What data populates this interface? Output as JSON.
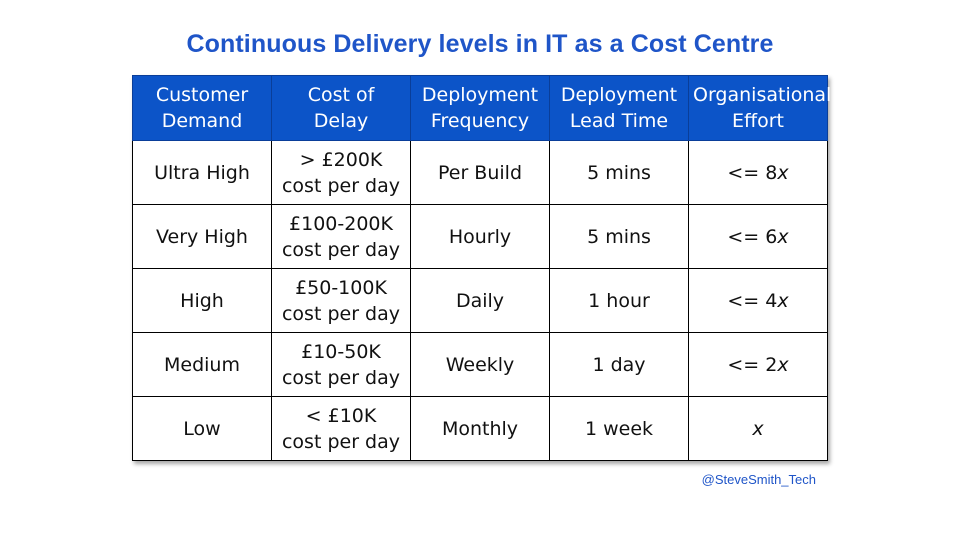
{
  "title": "Continuous Delivery levels in IT as a Cost Centre",
  "handle": "@SteveSmith_Tech",
  "colors": {
    "title": "#1f55c8",
    "header_bg": "#0c54c8",
    "header_text": "#ffffff"
  },
  "table": {
    "headers": [
      [
        "Customer",
        "Demand"
      ],
      [
        "Cost of",
        "Delay"
      ],
      [
        "Deployment",
        "Frequency"
      ],
      [
        "Deployment",
        "Lead Time"
      ],
      [
        "Organisational",
        "Effort"
      ]
    ],
    "rows": [
      {
        "demand": "Ultra High",
        "cost1": "> £200K",
        "cost2": "cost per day",
        "frequency": "Per Build",
        "lead_time": "5 mins",
        "effort_prefix": "<= 8",
        "effort_var": "x"
      },
      {
        "demand": "Very High",
        "cost1": "£100-200K",
        "cost2": "cost per day",
        "frequency": "Hourly",
        "lead_time": "5 mins",
        "effort_prefix": "<= 6",
        "effort_var": "x"
      },
      {
        "demand": "High",
        "cost1": "£50-100K",
        "cost2": "cost per day",
        "frequency": "Daily",
        "lead_time": "1 hour",
        "effort_prefix": "<= 4",
        "effort_var": "x"
      },
      {
        "demand": "Medium",
        "cost1": "£10-50K",
        "cost2": "cost per day",
        "frequency": "Weekly",
        "lead_time": "1 day",
        "effort_prefix": "<= 2",
        "effort_var": "x"
      },
      {
        "demand": "Low",
        "cost1": "< £10K",
        "cost2": "cost per day",
        "frequency": "Monthly",
        "lead_time": "1 week",
        "effort_prefix": "",
        "effort_var": "x"
      }
    ]
  }
}
